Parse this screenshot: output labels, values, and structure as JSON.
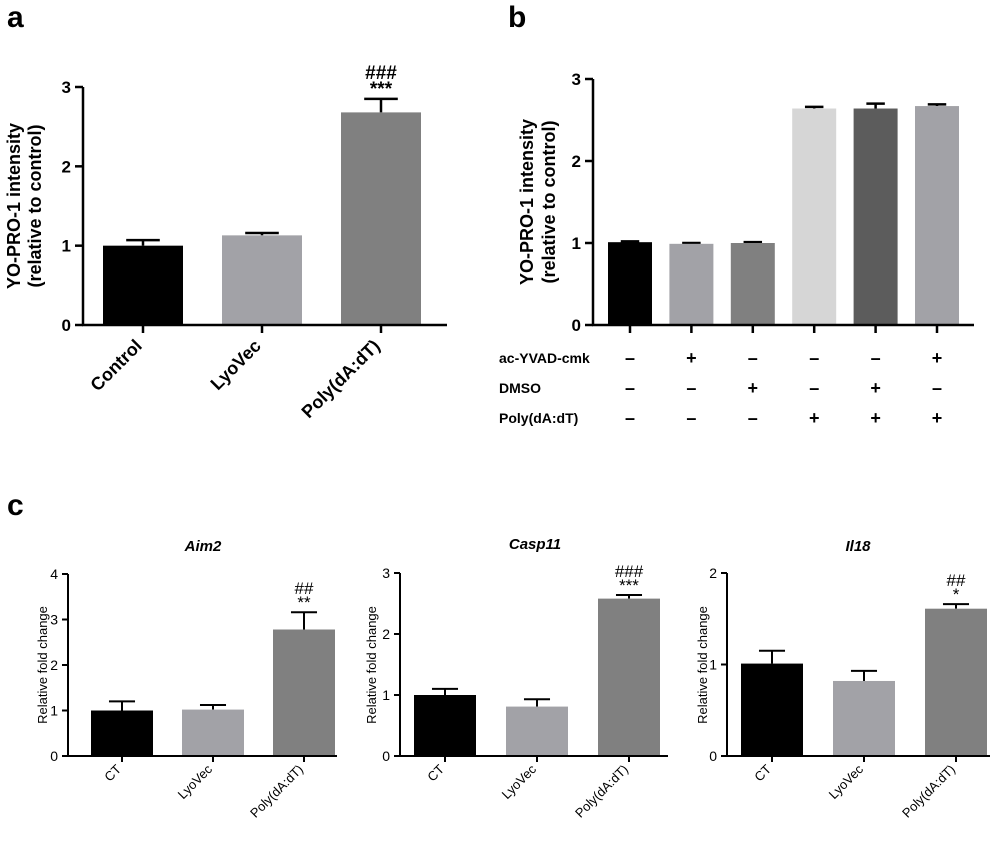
{
  "panels": {
    "a": "a",
    "b": "b",
    "c": "c"
  },
  "chart_data": [
    {
      "id": "a",
      "type": "bar",
      "title": "",
      "ylabel": [
        "YO-PRO-1 intensity",
        "(relative to control)"
      ],
      "ylim": [
        0,
        3
      ],
      "yticks": [
        0,
        1,
        2,
        3
      ],
      "categories": [
        "Control",
        "LyoVec",
        "Poly(dA:dT)"
      ],
      "values": [
        1.0,
        1.13,
        2.68
      ],
      "errors": [
        0.07,
        0.03,
        0.17
      ],
      "colors": [
        "#000000",
        "#a2a2a7",
        "#808080"
      ],
      "annotations": [
        [
          "",
          ""
        ],
        [
          "",
          ""
        ],
        [
          "###",
          "***"
        ]
      ]
    },
    {
      "id": "b",
      "type": "bar",
      "title": "",
      "ylabel": [
        "YO-PRO-1 intensity",
        "(relative to control)"
      ],
      "ylim": [
        0,
        3
      ],
      "yticks": [
        0,
        1,
        2,
        3
      ],
      "categories": [
        "",
        "",
        "",
        "",
        "",
        ""
      ],
      "values": [
        1.01,
        0.99,
        1.0,
        2.64,
        2.64,
        2.67
      ],
      "errors": [
        0.01,
        0.01,
        0.01,
        0.02,
        0.06,
        0.02
      ],
      "colors": [
        "#000000",
        "#a2a2a7",
        "#808080",
        "#d6d6d6",
        "#5c5c5c",
        "#a2a2a7"
      ],
      "treatments": [
        {
          "label": "ac-YVAD-cmk",
          "signs": [
            "–",
            "+",
            "–",
            "–",
            "–",
            "+"
          ]
        },
        {
          "label": "DMSO",
          "signs": [
            "–",
            "–",
            "+",
            "–",
            "+",
            "–"
          ]
        },
        {
          "label": "Poly(dA:dT)",
          "signs": [
            "–",
            "–",
            "–",
            "+",
            "+",
            "+"
          ]
        }
      ]
    },
    {
      "id": "c1",
      "type": "bar",
      "title": "Aim2",
      "ylabel": [
        "Relative fold change"
      ],
      "ylim": [
        0,
        4
      ],
      "yticks": [
        0,
        1,
        2,
        3,
        4
      ],
      "categories": [
        "CT",
        "LyoVec",
        "Poly(dA:dT)"
      ],
      "values": [
        1.0,
        1.02,
        2.78
      ],
      "errors": [
        0.2,
        0.1,
        0.38
      ],
      "colors": [
        "#000000",
        "#a2a2a7",
        "#808080"
      ],
      "annotations": [
        [
          "",
          ""
        ],
        [
          "",
          ""
        ],
        [
          "##",
          "**"
        ]
      ]
    },
    {
      "id": "c2",
      "type": "bar",
      "title": "Casp11",
      "ylabel": [
        "Relative fold change"
      ],
      "ylim": [
        0,
        3
      ],
      "yticks": [
        0,
        1,
        2,
        3
      ],
      "categories": [
        "CT",
        "LyoVec",
        "Poly(dA:dT)"
      ],
      "values": [
        1.0,
        0.81,
        2.58
      ],
      "errors": [
        0.1,
        0.12,
        0.06
      ],
      "colors": [
        "#000000",
        "#a2a2a7",
        "#808080"
      ],
      "annotations": [
        [
          "",
          ""
        ],
        [
          "",
          ""
        ],
        [
          "###",
          "***"
        ]
      ]
    },
    {
      "id": "c3",
      "type": "bar",
      "title": "Il18",
      "ylabel": [
        "Relative fold change"
      ],
      "ylim": [
        0,
        2
      ],
      "yticks": [
        0,
        1,
        2
      ],
      "categories": [
        "CT",
        "LyoVec",
        "Poly(dA:dT)"
      ],
      "values": [
        1.01,
        0.82,
        1.61
      ],
      "errors": [
        0.14,
        0.11,
        0.05
      ],
      "colors": [
        "#000000",
        "#a2a2a7",
        "#808080"
      ],
      "annotations": [
        [
          "",
          ""
        ],
        [
          "",
          ""
        ],
        [
          "##",
          "*"
        ]
      ]
    }
  ]
}
